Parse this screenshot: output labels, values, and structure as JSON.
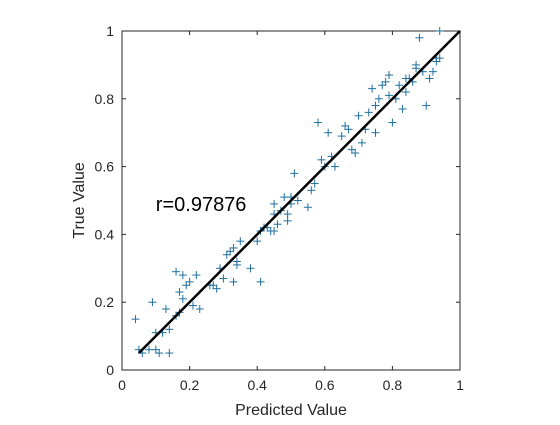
{
  "chart_data": {
    "type": "scatter",
    "xlabel": "Predicted Value",
    "ylabel": "True Value",
    "xlim": [
      0,
      1
    ],
    "ylim": [
      0,
      1
    ],
    "xticks": [
      "0",
      "0.2",
      "0.4",
      "0.6",
      "0.8",
      "1"
    ],
    "yticks": [
      "0",
      "0.2",
      "0.4",
      "0.6",
      "0.8",
      "1"
    ],
    "grid": false,
    "marker": "+",
    "marker_color": "#1f6f9e",
    "fit_line": {
      "x": [
        0.05,
        1.0
      ],
      "y": [
        0.05,
        1.0
      ],
      "color": "#000000"
    },
    "annotation": {
      "text": "r=0.97876",
      "x": 0.1,
      "y": 0.49
    },
    "series": [
      {
        "x": [
          0.04,
          0.05,
          0.06,
          0.08,
          0.09,
          0.1,
          0.1,
          0.11,
          0.12,
          0.13,
          0.14,
          0.14,
          0.16,
          0.16,
          0.17,
          0.17,
          0.18,
          0.18,
          0.19,
          0.2,
          0.21,
          0.22,
          0.23,
          0.26,
          0.27,
          0.28,
          0.29,
          0.3,
          0.31,
          0.32,
          0.33,
          0.33,
          0.34,
          0.34,
          0.35,
          0.38,
          0.4,
          0.41,
          0.41,
          0.42,
          0.43,
          0.44,
          0.45,
          0.45,
          0.45,
          0.46,
          0.47,
          0.48,
          0.49,
          0.49,
          0.5,
          0.5,
          0.51,
          0.52,
          0.55,
          0.56,
          0.57,
          0.58,
          0.59,
          0.6,
          0.61,
          0.62,
          0.63,
          0.65,
          0.66,
          0.67,
          0.68,
          0.69,
          0.7,
          0.71,
          0.72,
          0.73,
          0.74,
          0.75,
          0.75,
          0.76,
          0.77,
          0.78,
          0.79,
          0.79,
          0.8,
          0.81,
          0.82,
          0.83,
          0.84,
          0.84,
          0.85,
          0.86,
          0.87,
          0.87,
          0.88,
          0.89,
          0.9,
          0.91,
          0.92,
          0.93,
          0.93,
          0.94,
          0.94
        ],
        "y": [
          0.15,
          0.06,
          0.05,
          0.06,
          0.2,
          0.11,
          0.06,
          0.05,
          0.11,
          0.18,
          0.05,
          0.12,
          0.16,
          0.29,
          0.23,
          0.17,
          0.21,
          0.28,
          0.25,
          0.26,
          0.19,
          0.28,
          0.18,
          0.25,
          0.25,
          0.24,
          0.3,
          0.27,
          0.34,
          0.35,
          0.36,
          0.26,
          0.31,
          0.32,
          0.38,
          0.3,
          0.38,
          0.26,
          0.41,
          0.42,
          0.42,
          0.41,
          0.41,
          0.46,
          0.49,
          0.43,
          0.47,
          0.51,
          0.46,
          0.44,
          0.51,
          0.49,
          0.58,
          0.5,
          0.48,
          0.53,
          0.55,
          0.73,
          0.62,
          0.6,
          0.7,
          0.63,
          0.6,
          0.69,
          0.72,
          0.71,
          0.65,
          0.64,
          0.75,
          0.67,
          0.71,
          0.76,
          0.83,
          0.7,
          0.78,
          0.8,
          0.84,
          0.85,
          0.87,
          0.81,
          0.73,
          0.8,
          0.84,
          0.77,
          0.86,
          0.82,
          0.86,
          0.85,
          0.89,
          0.9,
          0.98,
          0.88,
          0.78,
          0.86,
          0.88,
          0.92,
          0.91,
          1.0,
          0.92
        ]
      }
    ]
  }
}
